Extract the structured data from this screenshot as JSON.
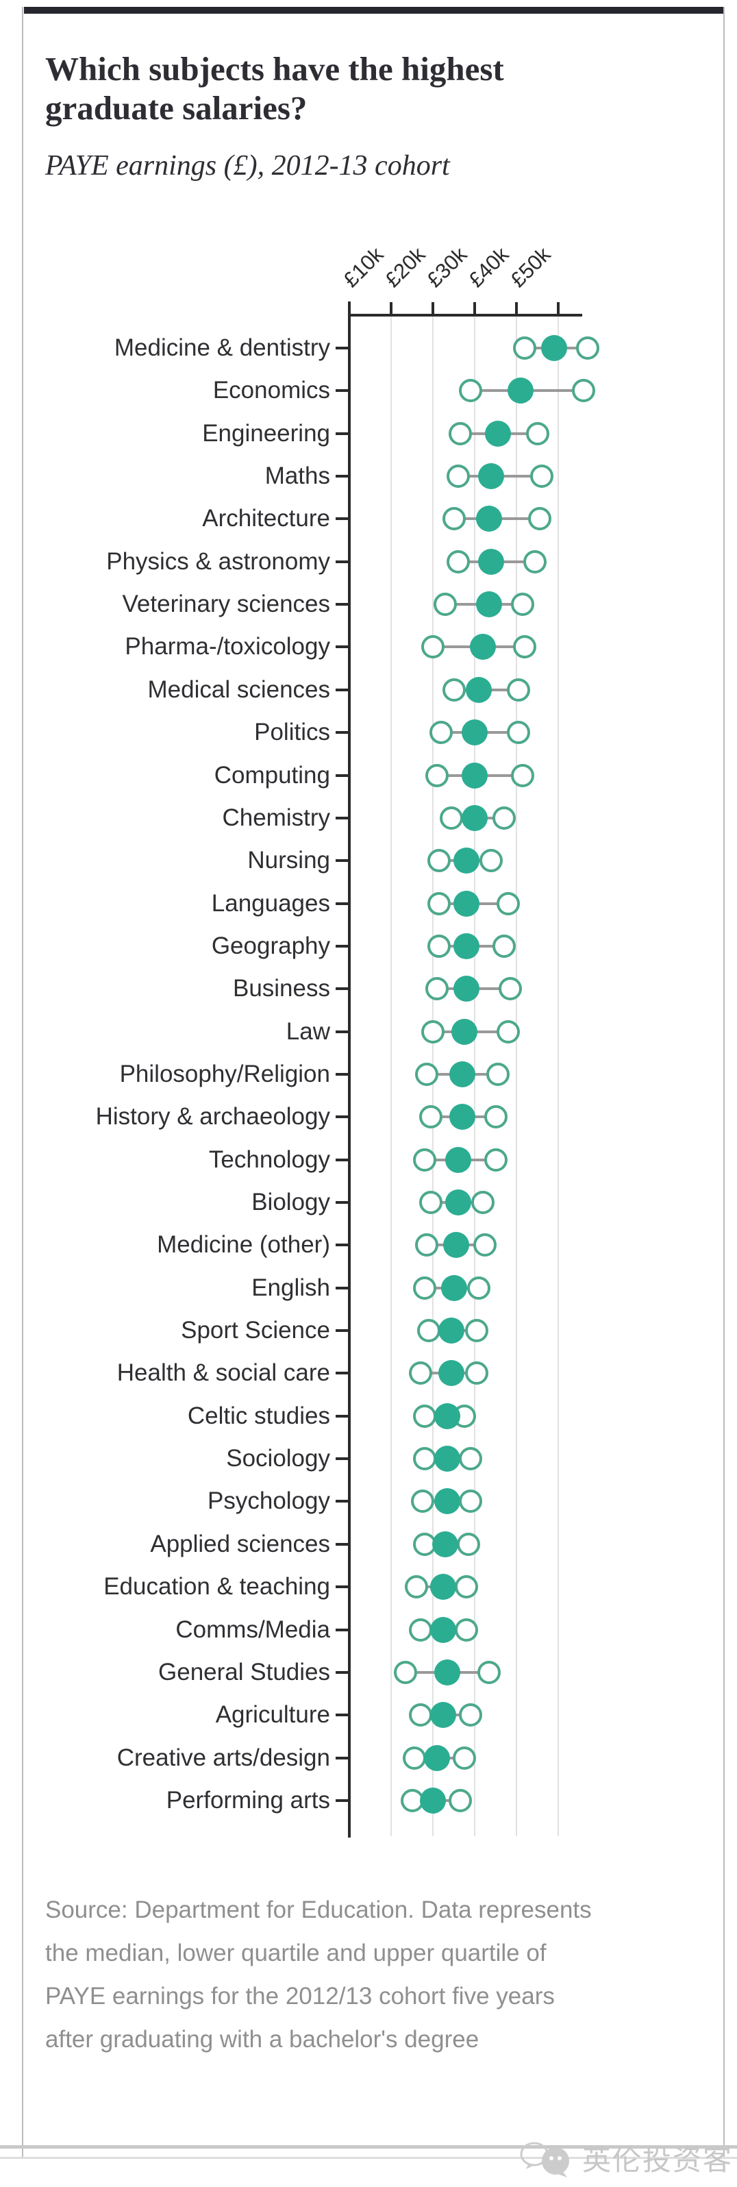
{
  "header": {
    "title_line1": "Which subjects have the highest",
    "title_line2": "graduate salaries?",
    "subtitle": "PAYE earnings (£), 2012-13 cohort"
  },
  "source": {
    "lines": [
      "Source: Department for Education. Data represents",
      "the median, lower quartile and upper quartile of",
      "PAYE earnings for the 2012/13 cohort five years",
      "after graduating with a bachelor's degree"
    ]
  },
  "watermark": {
    "text": "英伦投资客"
  },
  "colors": {
    "dot_fill": "#2bad92",
    "dot_stroke": "#4da88c",
    "connector": "#999999",
    "axis": "#2b2b2b",
    "gridline": "#e1e1e1",
    "topbar": "#26262e",
    "source_text": "#8f8f8f",
    "watermark_gray": "#c7c7c7"
  },
  "chart_data": {
    "type": "scatter",
    "variant": "dumbbell-dot-plot",
    "title": "Which subjects have the highest graduate salaries?",
    "subtitle": "PAYE earnings (£), 2012-13 cohort",
    "xlabel": "PAYE earnings (£)",
    "values_unit": "£ thousands",
    "xlim": [
      0,
      59
    ],
    "x_ticks": [
      "£10k",
      "£20k",
      "£30k",
      "£40k",
      "£50k"
    ],
    "x_tick_values": [
      10,
      20,
      30,
      40,
      50
    ],
    "grid": "vertical-only",
    "legend": [
      "lower quartile (open)",
      "median (filled)",
      "upper quartile (open)"
    ],
    "subjects": [
      {
        "label": "Medicine & dentistry",
        "lq": 42,
        "median": 49,
        "uq": 57
      },
      {
        "label": "Economics",
        "lq": 29,
        "median": 41,
        "uq": 56
      },
      {
        "label": "Engineering",
        "lq": 26.5,
        "median": 35.5,
        "uq": 45
      },
      {
        "label": "Maths",
        "lq": 26,
        "median": 34,
        "uq": 46
      },
      {
        "label": "Architecture",
        "lq": 25,
        "median": 33.5,
        "uq": 45.5
      },
      {
        "label": "Physics & astronomy",
        "lq": 26,
        "median": 34,
        "uq": 44.5
      },
      {
        "label": "Veterinary sciences",
        "lq": 23,
        "median": 33.5,
        "uq": 41.5
      },
      {
        "label": "Pharma-/toxicology",
        "lq": 20,
        "median": 32,
        "uq": 42
      },
      {
        "label": "Medical sciences",
        "lq": 25,
        "median": 31,
        "uq": 40.5
      },
      {
        "label": "Politics",
        "lq": 22,
        "median": 30,
        "uq": 40.5
      },
      {
        "label": "Computing",
        "lq": 21,
        "median": 30,
        "uq": 41.5
      },
      {
        "label": "Chemistry",
        "lq": 24.5,
        "median": 30,
        "uq": 37
      },
      {
        "label": "Nursing",
        "lq": 21.5,
        "median": 28,
        "uq": 34
      },
      {
        "label": "Languages",
        "lq": 21.5,
        "median": 28,
        "uq": 38
      },
      {
        "label": "Geography",
        "lq": 21.5,
        "median": 28,
        "uq": 37
      },
      {
        "label": "Business",
        "lq": 21,
        "median": 28,
        "uq": 38.5
      },
      {
        "label": "Law",
        "lq": 20,
        "median": 27.5,
        "uq": 38
      },
      {
        "label": "Philosophy/Religion",
        "lq": 18.5,
        "median": 27,
        "uq": 35.5
      },
      {
        "label": "History & archaeology",
        "lq": 19.5,
        "median": 27,
        "uq": 35
      },
      {
        "label": "Technology",
        "lq": 18,
        "median": 26,
        "uq": 35
      },
      {
        "label": "Biology",
        "lq": 19.5,
        "median": 26,
        "uq": 32
      },
      {
        "label": "Medicine (other)",
        "lq": 18.5,
        "median": 25.5,
        "uq": 32.5
      },
      {
        "label": "English",
        "lq": 18,
        "median": 25,
        "uq": 31
      },
      {
        "label": "Sport Science",
        "lq": 19,
        "median": 24.5,
        "uq": 30.5
      },
      {
        "label": "Health & social care",
        "lq": 17,
        "median": 24.5,
        "uq": 30.5
      },
      {
        "label": "Celtic studies",
        "lq": 18,
        "median": 23.5,
        "uq": 27.5
      },
      {
        "label": "Sociology",
        "lq": 18,
        "median": 23.5,
        "uq": 29
      },
      {
        "label": "Psychology",
        "lq": 17.5,
        "median": 23.5,
        "uq": 29
      },
      {
        "label": "Applied sciences",
        "lq": 18,
        "median": 23,
        "uq": 28.5
      },
      {
        "label": "Education & teaching",
        "lq": 16,
        "median": 22.5,
        "uq": 28
      },
      {
        "label": "Comms/Media",
        "lq": 17,
        "median": 22.5,
        "uq": 28
      },
      {
        "label": "General Studies",
        "lq": 13.5,
        "median": 23.5,
        "uq": 33.5
      },
      {
        "label": "Agriculture",
        "lq": 17,
        "median": 22.5,
        "uq": 29
      },
      {
        "label": "Creative arts/design",
        "lq": 15.5,
        "median": 21,
        "uq": 27.5
      },
      {
        "label": "Performing arts",
        "lq": 15,
        "median": 20,
        "uq": 26.5
      }
    ]
  }
}
